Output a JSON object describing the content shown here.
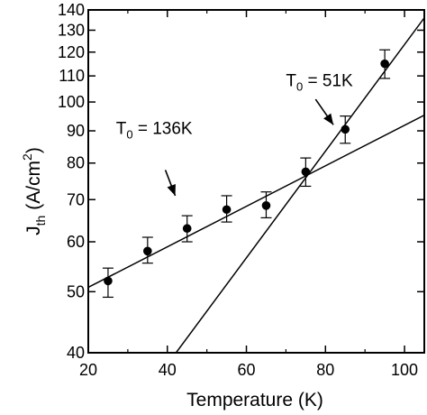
{
  "chart_data": {
    "type": "scatter",
    "xlabel": "Temperature (K)",
    "ylabel": {
      "main": "J",
      "sub": "th",
      "unit_pre": "(A/cm",
      "unit_sup": "2",
      "unit_post": ")"
    },
    "xlim": [
      20,
      105
    ],
    "ylim": [
      40,
      140
    ],
    "y_scale": "log",
    "x_ticks": [
      20,
      40,
      60,
      80,
      100
    ],
    "x_tick_labels": [
      "20",
      "40",
      "60",
      "80",
      "100"
    ],
    "y_ticks": [
      40,
      50,
      60,
      70,
      80,
      90,
      100,
      110,
      120,
      130,
      140
    ],
    "y_tick_labels": [
      "40",
      "50",
      "60",
      "70",
      "80",
      "90",
      "100",
      "110",
      "120",
      "130",
      "140"
    ],
    "grid": false,
    "series": [
      {
        "x": [
          25,
          35,
          45,
          55,
          65,
          75,
          85,
          95
        ],
        "y": [
          52,
          58,
          63,
          67.5,
          68.5,
          77.5,
          90.5,
          115
        ],
        "err_low": [
          49,
          55.5,
          60,
          64.5,
          65.5,
          73.5,
          86,
          109
        ],
        "err_high": [
          54.5,
          61,
          66,
          71,
          72,
          81.5,
          95,
          121
        ]
      }
    ],
    "fit_lines": [
      {
        "label": "T0 = 136K",
        "x": [
          20,
          105
        ],
        "y": [
          50.8,
          95.3
        ]
      },
      {
        "label": "T0 = 51K",
        "x": [
          42.2,
          105
        ],
        "y": [
          40,
          136
        ]
      }
    ],
    "annotations": [
      {
        "main": "T",
        "sub": "0",
        "rest": " = 136K",
        "x": 27,
        "y": 89
      },
      {
        "main": "T",
        "sub": "0",
        "rest": " = 51K",
        "x": 70,
        "y": 106
      }
    ],
    "arrows": [
      {
        "from": [
          39.5,
          78
        ],
        "to": [
          42,
          71
        ]
      },
      {
        "from": [
          77.5,
          101
        ],
        "to": [
          82,
          92
        ]
      }
    ]
  }
}
